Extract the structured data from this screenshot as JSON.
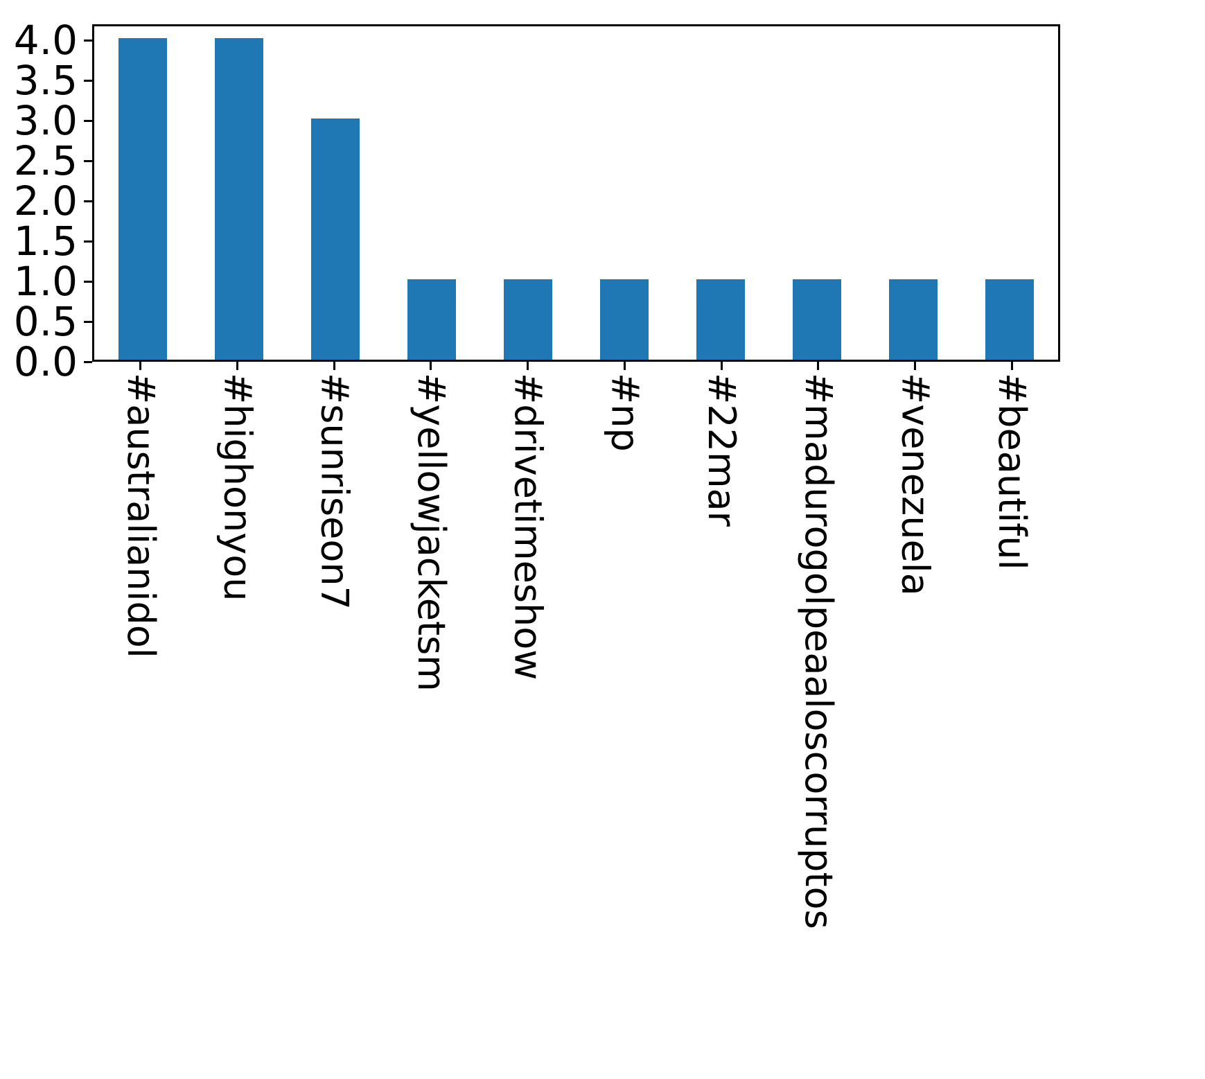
{
  "chart_data": {
    "type": "bar",
    "title": "",
    "xlabel": "",
    "ylabel": "",
    "categories": [
      "#australianidol",
      "#highonyou",
      "#sunriseon7",
      "#yellowjacketsm",
      "#drivetimeshow",
      "#np",
      "#22mar",
      "#madurogolpeaaloscorruptos",
      "#venezuela",
      "#beautiful"
    ],
    "values": [
      4,
      4,
      3,
      1,
      1,
      1,
      1,
      1,
      1,
      1
    ],
    "ylim": [
      0,
      4.2
    ],
    "yticks": [
      0.0,
      0.5,
      1.0,
      1.5,
      2.0,
      2.5,
      3.0,
      3.5,
      4.0
    ],
    "ytick_labels": [
      "0.0",
      "0.5",
      "1.0",
      "1.5",
      "2.0",
      "2.5",
      "3.0",
      "3.5",
      "4.0"
    ],
    "bar_color": "#1f77b4",
    "axis_color": "#000000",
    "grid": false,
    "legend": false,
    "x_label_rotation": 90
  }
}
